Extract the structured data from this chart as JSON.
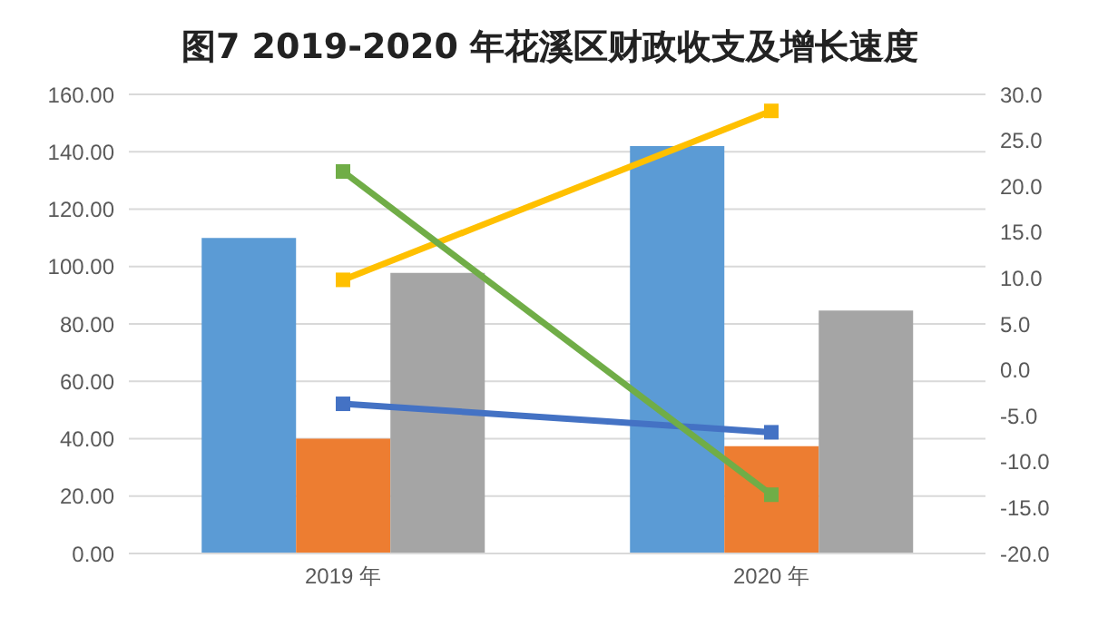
{
  "chart_data": {
    "type": "bar",
    "title": "图7  2019-2020 年花溪区财政收支及增长速度",
    "categories": [
      "2019 年",
      "2020 年"
    ],
    "series": [
      {
        "color": "#5b9bd5",
        "values": [
          110,
          142
        ]
      },
      {
        "color": "#ed7d31",
        "values": [
          40,
          37.4
        ]
      },
      {
        "color": "#a5a5a5",
        "values": [
          97.8,
          84.7
        ]
      },
      {
        "type": "line",
        "axis": "y2",
        "color": "#4472c4",
        "values": [
          -3.7,
          -6.8
        ]
      },
      {
        "type": "line",
        "axis": "y2",
        "color": "#ffc000",
        "values": [
          9.8,
          28.2
        ]
      },
      {
        "type": "line",
        "axis": "y2",
        "color": "#70ad47",
        "values": [
          21.6,
          -13.6
        ]
      }
    ],
    "ylim": [
      0,
      160
    ],
    "yticks": [
      {
        "value": 0,
        "label": "0.00"
      },
      {
        "value": 20,
        "label": "20.00"
      },
      {
        "value": 40,
        "label": "40.00"
      },
      {
        "value": 60,
        "label": "60.00"
      },
      {
        "value": 80,
        "label": "80.00"
      },
      {
        "value": 100,
        "label": "100.00"
      },
      {
        "value": 120,
        "label": "120.00"
      },
      {
        "value": 140,
        "label": "140.00"
      },
      {
        "value": 160,
        "label": "160.00"
      }
    ],
    "y2lim": [
      -20,
      30
    ],
    "y2ticks": [
      {
        "value": -20,
        "label": "-20.0"
      },
      {
        "value": -15,
        "label": "-15.0"
      },
      {
        "value": -10,
        "label": "-10.0"
      },
      {
        "value": -5,
        "label": "-5.0"
      },
      {
        "value": 0,
        "label": "0.0"
      },
      {
        "value": 5,
        "label": "5.0"
      },
      {
        "value": 10,
        "label": "10.0"
      },
      {
        "value": 15,
        "label": "15.0"
      },
      {
        "value": 20,
        "label": "20.0"
      },
      {
        "value": 25,
        "label": "25.0"
      },
      {
        "value": 30,
        "label": "30.0"
      }
    ],
    "grid": "y",
    "marker": "square",
    "legend": false
  }
}
